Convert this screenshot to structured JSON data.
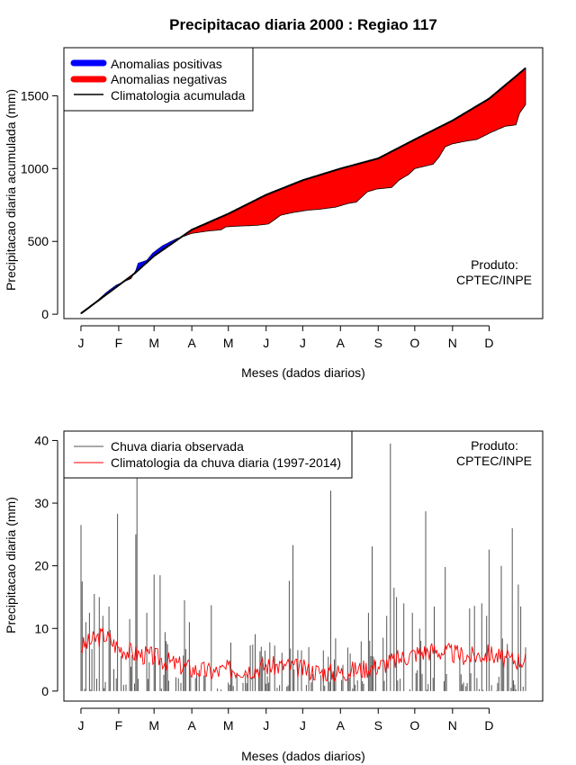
{
  "title": "Precipitacao diaria 2000 : Regiao 117",
  "chart_data": [
    {
      "type": "area",
      "title": "Precipitacao diaria 2000 : Regiao 117",
      "xlabel": "Meses (dados diarios)",
      "ylabel": "Precipitacao diaria acumulada (mm)",
      "x_ticks": [
        "J",
        "F",
        "M",
        "A",
        "M",
        "J",
        "J",
        "A",
        "S",
        "O",
        "N",
        "D"
      ],
      "x_tick_days": [
        1,
        32,
        61,
        92,
        122,
        153,
        183,
        214,
        245,
        275,
        306,
        336
      ],
      "xlim": [
        -13,
        380
      ],
      "ylim": [
        -30,
        1830
      ],
      "y_ticks": [
        0,
        500,
        1000,
        1500
      ],
      "legend": {
        "position": "top-left",
        "entries": [
          {
            "label": "Anomalias positivas",
            "color": "#0000ff"
          },
          {
            "label": "Anomalias negativas",
            "color": "#ff0000"
          },
          {
            "label": "Climatologia acumulada",
            "color": "#000000"
          }
        ]
      },
      "annotation": [
        "Produto:",
        "CPTEC/INPE"
      ],
      "climatology_knots": [
        [
          1,
          5
        ],
        [
          45,
          280
        ],
        [
          61,
          400
        ],
        [
          92,
          580
        ],
        [
          122,
          690
        ],
        [
          153,
          820
        ],
        [
          183,
          920
        ],
        [
          214,
          1000
        ],
        [
          245,
          1070
        ],
        [
          275,
          1200
        ],
        [
          306,
          1330
        ],
        [
          336,
          1480
        ],
        [
          366,
          1690
        ]
      ],
      "observed_knots": [
        [
          1,
          10
        ],
        [
          6,
          40
        ],
        [
          12,
          75
        ],
        [
          18,
          120
        ],
        [
          22,
          150
        ],
        [
          30,
          200
        ],
        [
          38,
          230
        ],
        [
          42,
          245
        ],
        [
          46,
          300
        ],
        [
          48,
          350
        ],
        [
          55,
          370
        ],
        [
          60,
          420
        ],
        [
          68,
          470
        ],
        [
          75,
          500
        ],
        [
          80,
          520
        ],
        [
          92,
          555
        ],
        [
          104,
          570
        ],
        [
          116,
          580
        ],
        [
          120,
          600
        ],
        [
          130,
          605
        ],
        [
          145,
          610
        ],
        [
          155,
          620
        ],
        [
          165,
          680
        ],
        [
          176,
          700
        ],
        [
          188,
          715
        ],
        [
          196,
          720
        ],
        [
          210,
          735
        ],
        [
          220,
          760
        ],
        [
          227,
          770
        ],
        [
          236,
          840
        ],
        [
          244,
          860
        ],
        [
          256,
          870
        ],
        [
          262,
          920
        ],
        [
          270,
          960
        ],
        [
          275,
          1000
        ],
        [
          290,
          1030
        ],
        [
          295,
          1080
        ],
        [
          300,
          1150
        ],
        [
          306,
          1170
        ],
        [
          318,
          1190
        ],
        [
          326,
          1200
        ],
        [
          338,
          1250
        ],
        [
          349,
          1290
        ],
        [
          358,
          1300
        ],
        [
          361,
          1380
        ],
        [
          366,
          1440
        ]
      ]
    },
    {
      "type": "bar",
      "xlabel": "Meses (dados diarios)",
      "ylabel": "Precipitacao diaria (mm)",
      "x_ticks": [
        "J",
        "F",
        "M",
        "A",
        "M",
        "J",
        "J",
        "A",
        "S",
        "O",
        "N",
        "D"
      ],
      "x_tick_days": [
        1,
        32,
        61,
        92,
        122,
        153,
        183,
        214,
        245,
        275,
        306,
        336
      ],
      "xlim": [
        -13,
        380
      ],
      "ylim": [
        -1.6,
        41.5
      ],
      "y_ticks": [
        0,
        10,
        20,
        30,
        40
      ],
      "legend": {
        "position": "top-left",
        "entries": [
          {
            "label": "Chuva diaria observada",
            "color": "#555555"
          },
          {
            "label": "Climatologia da chuva diaria (1997-2014)",
            "color": "#ff0000"
          }
        ]
      },
      "annotation": [
        "Produto:",
        "CPTEC/INPE"
      ],
      "rain_peaks": [
        [
          1,
          26.5
        ],
        [
          2,
          17.5
        ],
        [
          5,
          11.0
        ],
        [
          8,
          12.5
        ],
        [
          12,
          15.5
        ],
        [
          16,
          15.0
        ],
        [
          19,
          12.0
        ],
        [
          24,
          13.5
        ],
        [
          31,
          28.3
        ],
        [
          41,
          11.5
        ],
        [
          46,
          25.0
        ],
        [
          47,
          35.0
        ],
        [
          55,
          12.5
        ],
        [
          61,
          18.6
        ],
        [
          66,
          18.5
        ],
        [
          72,
          7.5
        ],
        [
          86,
          14.5
        ],
        [
          90,
          11.0
        ],
        [
          108,
          13.7
        ],
        [
          125,
          3.5
        ],
        [
          138,
          2.5
        ],
        [
          172,
          17.6
        ],
        [
          175,
          23.3
        ],
        [
          182,
          6.5
        ],
        [
          188,
          7.0
        ],
        [
          200,
          6.5
        ],
        [
          204,
          5.5
        ],
        [
          206,
          32.0
        ],
        [
          222,
          6.0
        ],
        [
          237,
          12.5
        ],
        [
          240,
          23.1
        ],
        [
          252,
          12.0
        ],
        [
          255,
          39.5
        ],
        [
          258,
          16.5
        ],
        [
          260,
          15.0
        ],
        [
          266,
          14.0
        ],
        [
          273,
          12.5
        ],
        [
          284,
          28.7
        ],
        [
          291,
          13.5
        ],
        [
          300,
          19.8
        ],
        [
          320,
          13.2
        ],
        [
          324,
          13.6
        ],
        [
          330,
          14.0
        ],
        [
          334,
          12.0
        ],
        [
          336,
          22.6
        ],
        [
          346,
          20.0
        ],
        [
          355,
          26.0
        ],
        [
          360,
          17.0
        ],
        [
          362,
          13.5
        ]
      ],
      "climatology_knots": [
        [
          1,
          7
        ],
        [
          10,
          8
        ],
        [
          20,
          9
        ],
        [
          31,
          7
        ],
        [
          45,
          6
        ],
        [
          61,
          5.5
        ],
        [
          75,
          4.5
        ],
        [
          92,
          3.5
        ],
        [
          110,
          3
        ],
        [
          122,
          3.5
        ],
        [
          140,
          3.5
        ],
        [
          153,
          4
        ],
        [
          170,
          4
        ],
        [
          183,
          3.5
        ],
        [
          200,
          3
        ],
        [
          214,
          3
        ],
        [
          230,
          3.5
        ],
        [
          245,
          4
        ],
        [
          260,
          5
        ],
        [
          275,
          6
        ],
        [
          290,
          6.5
        ],
        [
          306,
          6
        ],
        [
          320,
          5.5
        ],
        [
          336,
          6
        ],
        [
          350,
          5
        ],
        [
          366,
          5
        ]
      ]
    }
  ]
}
